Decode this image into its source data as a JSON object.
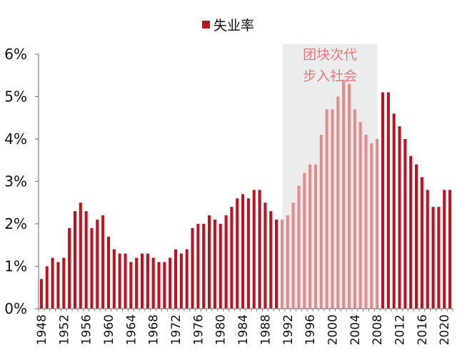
{
  "chart_data": {
    "type": "bar",
    "legend": {
      "label": "失业率",
      "position": "top-center"
    },
    "x_tick_labels": [
      "1948",
      "1952",
      "1956",
      "1960",
      "1964",
      "1968",
      "1972",
      "1976",
      "1980",
      "1984",
      "1988",
      "1992",
      "1996",
      "2000",
      "2004",
      "2008",
      "2012",
      "2016",
      "2020"
    ],
    "y_tick_labels": [
      "0%",
      "1%",
      "2%",
      "3%",
      "4%",
      "5%",
      "6%"
    ],
    "ylim": [
      0,
      6
    ],
    "grid": false,
    "series": [
      {
        "name": "失业率",
        "x": [
          1948,
          1949,
          1950,
          1951,
          1952,
          1953,
          1954,
          1955,
          1956,
          1957,
          1958,
          1959,
          1960,
          1961,
          1962,
          1963,
          1964,
          1965,
          1966,
          1967,
          1968,
          1969,
          1970,
          1971,
          1972,
          1973,
          1974,
          1975,
          1976,
          1977,
          1978,
          1979,
          1980,
          1981,
          1982,
          1983,
          1984,
          1985,
          1986,
          1987,
          1988,
          1989,
          1990,
          1991,
          1992,
          1993,
          1994,
          1995,
          1996,
          1997,
          1998,
          1999,
          2000,
          2001,
          2002,
          2003,
          2004,
          2005,
          2006,
          2007,
          2008,
          2009,
          2010,
          2011,
          2012,
          2013,
          2014,
          2015,
          2016,
          2017,
          2018,
          2019,
          2020,
          2021
        ],
        "values": [
          0.7,
          1.0,
          1.2,
          1.1,
          1.2,
          1.9,
          2.3,
          2.5,
          2.3,
          1.9,
          2.1,
          2.2,
          1.7,
          1.4,
          1.3,
          1.3,
          1.1,
          1.2,
          1.3,
          1.3,
          1.2,
          1.1,
          1.1,
          1.2,
          1.4,
          1.3,
          1.4,
          1.9,
          2.0,
          2.0,
          2.2,
          2.1,
          2.0,
          2.2,
          2.4,
          2.6,
          2.7,
          2.6,
          2.8,
          2.8,
          2.5,
          2.3,
          2.1,
          2.1,
          2.2,
          2.5,
          2.9,
          3.2,
          3.4,
          3.4,
          4.1,
          4.7,
          4.7,
          5.0,
          5.4,
          5.3,
          4.7,
          4.4,
          4.1,
          3.9,
          4.0,
          5.1,
          5.1,
          4.6,
          4.3,
          4.0,
          3.6,
          3.4,
          3.1,
          2.8,
          2.4,
          2.4,
          2.8,
          2.8
        ]
      }
    ],
    "shaded_region": {
      "start": 1991,
      "end": 2008,
      "label_lines": [
        "团块次代",
        "步入社会"
      ]
    },
    "colors": {
      "bar_normal": "#c0111f",
      "bar_highlight": "#e58a8a",
      "shade": "#ececec",
      "annotation": "#e07a78",
      "axis": "#808080"
    }
  }
}
